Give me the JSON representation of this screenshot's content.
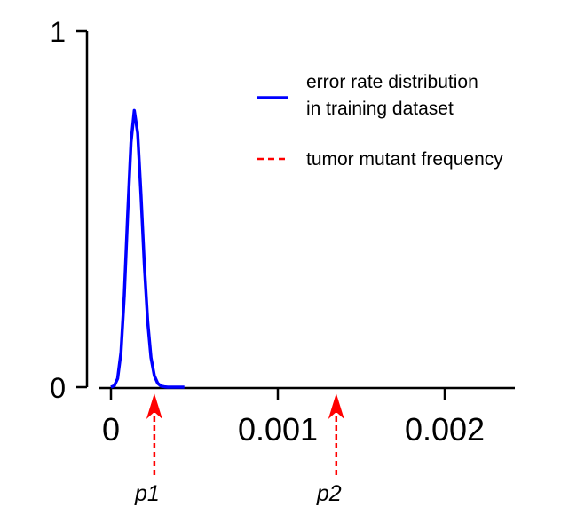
{
  "chart_data": {
    "type": "line",
    "title": "",
    "xlabel": "",
    "ylabel": "",
    "xlim": [
      0,
      0.00245
    ],
    "ylim": [
      0,
      1
    ],
    "x_ticks": [
      {
        "value": 0,
        "label": "0"
      },
      {
        "value": 0.001,
        "label": "0.001"
      },
      {
        "value": 0.002,
        "label": "0.002"
      }
    ],
    "y_ticks": [
      {
        "value": 0,
        "label": "0"
      },
      {
        "value": 1,
        "label": "1"
      }
    ],
    "series": [
      {
        "name": "error rate distribution in training dataset",
        "color": "#0000ff",
        "style": "solid",
        "x": [
          0,
          2e-05,
          4e-05,
          6e-05,
          8e-05,
          0.0001,
          0.00012,
          0.00014,
          0.00016,
          0.00018,
          0.0002,
          0.00022,
          0.00024,
          0.00026,
          0.00028,
          0.0003,
          0.00032,
          0.00034,
          0.00036,
          0.00038,
          0.0004,
          0.00042,
          0.00044
        ],
        "y": [
          0.0,
          0.004,
          0.024,
          0.098,
          0.257,
          0.483,
          0.687,
          0.777,
          0.714,
          0.542,
          0.344,
          0.184,
          0.083,
          0.032,
          0.011,
          0.003,
          0.001,
          0.0,
          0.0,
          0.0,
          0.0,
          0.0,
          0.0
        ]
      }
    ],
    "markers": [
      {
        "label": "p1",
        "x": 0.00026,
        "color": "#ff0000",
        "style": "dashed"
      },
      {
        "label": "p2",
        "x": 0.00135,
        "color": "#ff0000",
        "style": "dashed"
      }
    ],
    "legend": {
      "placement": "top-right",
      "entries": [
        {
          "line1": "error rate distribution",
          "line2": "in training dataset",
          "color": "#0000ff",
          "style": "solid"
        },
        {
          "line1": "tumor mutant frequency",
          "line2": "",
          "color": "#ff0000",
          "style": "dashed"
        }
      ]
    }
  }
}
